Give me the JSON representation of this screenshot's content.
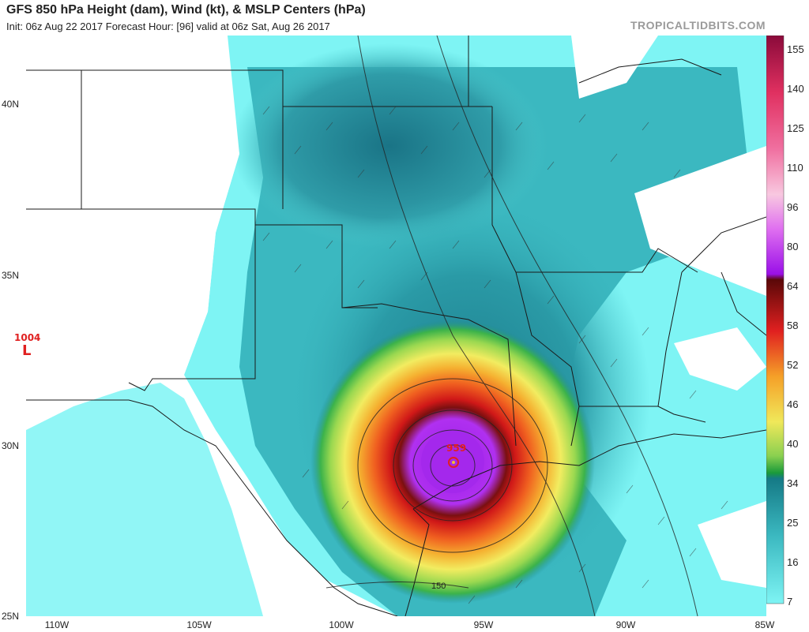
{
  "title": "GFS 850 hPa Height (dam), Wind (kt), & MSLP Centers (hPa)",
  "subtitle": "Init: 06z Aug 22 2017   Forecast Hour: [96]   valid at 06z Sat, Aug 26 2017",
  "brand": "TROPICALTIDBITS.COM",
  "lon_labels": [
    "110W",
    "105W",
    "100W",
    "95W",
    "90W",
    "85W"
  ],
  "lat_labels": [
    "40N",
    "35N",
    "30N",
    "25N"
  ],
  "colorbar_labels": [
    "155",
    "140",
    "125",
    "110",
    "96",
    "80",
    "64",
    "58",
    "52",
    "46",
    "40",
    "34",
    "25",
    "16",
    "7"
  ],
  "height_contour_label": "150",
  "low_center": {
    "pressure": "1004",
    "symbol": "L"
  },
  "hurricane_center": {
    "pressure": "959"
  },
  "colors": {
    "low_wind": "#7ef4f4",
    "mid_wind": "#3bb8c0",
    "teal": "#1e8a96",
    "green": "#3cb34a",
    "yellow": "#f0e85a",
    "orange": "#f5a028",
    "red": "#e02020",
    "purple": "#9a20e8"
  }
}
